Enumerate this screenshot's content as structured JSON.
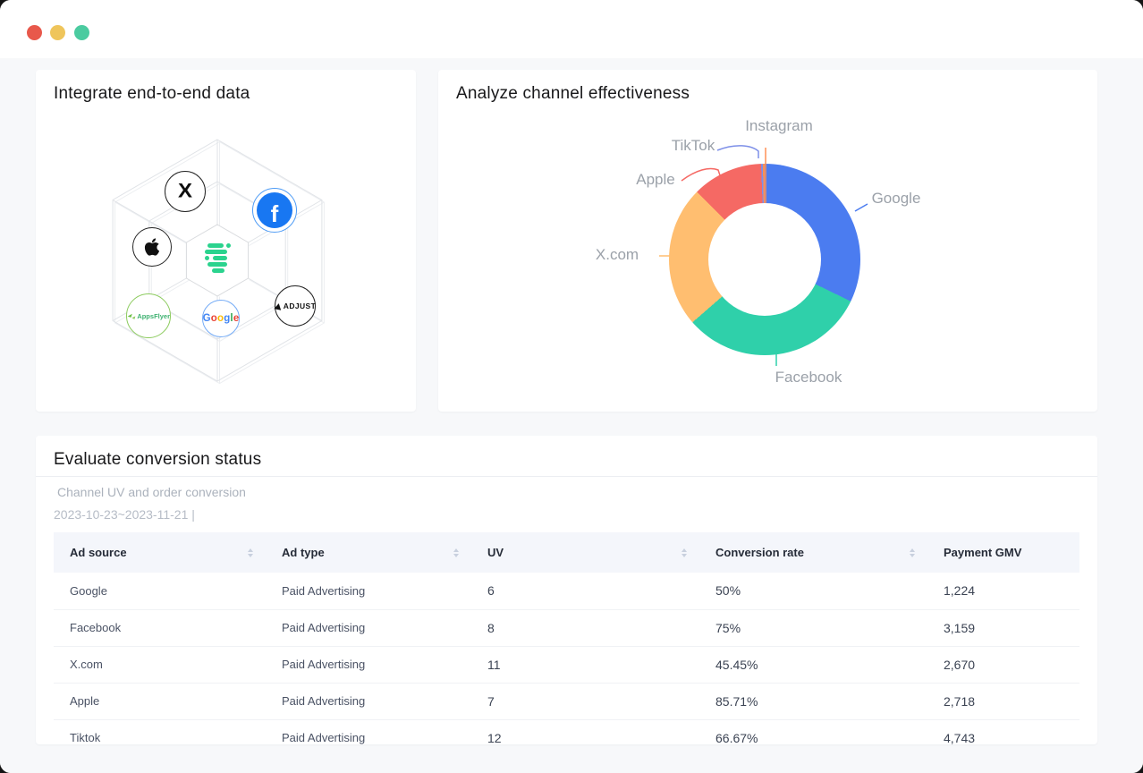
{
  "window": {
    "traffic_lights": {
      "close_color": "#E8584B",
      "minimize_color": "#EFC55B",
      "zoom_color": "#4BCBA0"
    }
  },
  "cards": {
    "integrate": {
      "title": "Integrate end-to-end data",
      "nodes": {
        "x": {
          "glyph": "X"
        },
        "facebook": {
          "glyph": "f"
        },
        "apple": {
          "icon": "apple-logo"
        },
        "appsflyer": {
          "label": "AppsFlyer"
        },
        "google": {
          "label": "Google",
          "letter_colors": [
            "#4285F4",
            "#EA4335",
            "#FBBC05",
            "#4285F4",
            "#34A853",
            "#EA4335"
          ]
        },
        "adjust": {
          "label": "ADJUST"
        },
        "center": {
          "icon": "solarengine-logo",
          "accent_color": "#2BD38E"
        }
      }
    },
    "analyze": {
      "title": "Analyze channel effectiveness"
    },
    "evaluate": {
      "title": "Evaluate conversion status",
      "subtitle": "Channel UV and order conversion",
      "date_range": "2023-10-23~2023-11-21 |"
    }
  },
  "chart_data": {
    "type": "pie",
    "subtype": "donut",
    "inner_radius_ratio": 0.59,
    "start_angle": "top",
    "direction": "clockwise",
    "legend": "none",
    "label_color": "#9BA1A9",
    "segments": [
      {
        "label": "Google",
        "value_pct": 32.2,
        "color": "#4B7CF0"
      },
      {
        "label": "Facebook",
        "value_pct": 31.4,
        "color": "#2FD0AA"
      },
      {
        "label": "X.com",
        "value_pct": 23.9,
        "color": "#FFBE70"
      },
      {
        "label": "Apple",
        "value_pct": 11.9,
        "color": "#F56964"
      },
      {
        "label": "TikTok",
        "value_pct": 0.3,
        "color": "#7D8FE8"
      },
      {
        "label": "Instagram",
        "value_pct": 0.3,
        "color": "#FF9055"
      }
    ]
  },
  "table": {
    "columns": [
      {
        "label": "Ad source",
        "sortable": true
      },
      {
        "label": "Ad type",
        "sortable": true
      },
      {
        "label": "UV",
        "sortable": true
      },
      {
        "label": "Conversion rate",
        "sortable": true
      },
      {
        "label": "Payment GMV",
        "sortable": false
      }
    ],
    "rows": [
      [
        "Google",
        "Paid Advertising",
        "6",
        "50%",
        "1,224"
      ],
      [
        "Facebook",
        "Paid Advertising",
        "8",
        "75%",
        "3,159"
      ],
      [
        "X.com",
        "Paid Advertising",
        "11",
        "45.45%",
        "2,670"
      ],
      [
        "Apple",
        "Paid Advertising",
        "7",
        "85.71%",
        "2,718"
      ],
      [
        "Tiktok",
        "Paid Advertising",
        "12",
        "66.67%",
        "4,743"
      ]
    ]
  }
}
